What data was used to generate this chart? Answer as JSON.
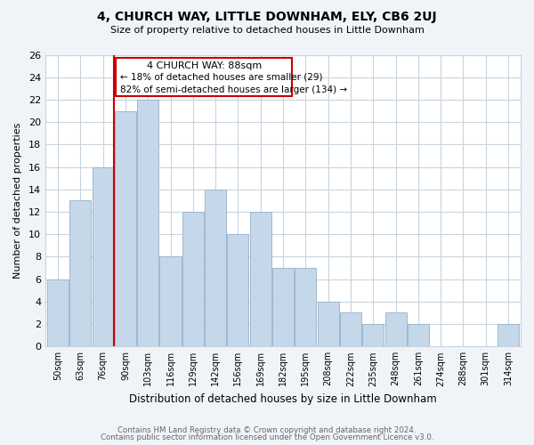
{
  "title": "4, CHURCH WAY, LITTLE DOWNHAM, ELY, CB6 2UJ",
  "subtitle": "Size of property relative to detached houses in Little Downham",
  "xlabel": "Distribution of detached houses by size in Little Downham",
  "ylabel": "Number of detached properties",
  "bar_labels": [
    "50sqm",
    "63sqm",
    "76sqm",
    "90sqm",
    "103sqm",
    "116sqm",
    "129sqm",
    "142sqm",
    "156sqm",
    "169sqm",
    "182sqm",
    "195sqm",
    "208sqm",
    "222sqm",
    "235sqm",
    "248sqm",
    "261sqm",
    "274sqm",
    "288sqm",
    "301sqm",
    "314sqm"
  ],
  "bar_values": [
    6,
    13,
    16,
    21,
    22,
    8,
    12,
    14,
    10,
    12,
    7,
    7,
    4,
    3,
    2,
    3,
    2,
    0,
    0,
    0,
    2
  ],
  "bar_color": "#c5d8ea",
  "bar_edgecolor": "#9db8cf",
  "marker_label": "4 CHURCH WAY: 88sqm",
  "marker_color": "#cc0000",
  "annotation_line1": "← 18% of detached houses are smaller (29)",
  "annotation_line2": "82% of semi-detached houses are larger (134) →",
  "ylim": [
    0,
    26
  ],
  "yticks": [
    0,
    2,
    4,
    6,
    8,
    10,
    12,
    14,
    16,
    18,
    20,
    22,
    24,
    26
  ],
  "footer_line1": "Contains HM Land Registry data © Crown copyright and database right 2024.",
  "footer_line2": "Contains public sector information licensed under the Open Government Licence v3.0.",
  "bg_color": "#f0f4f8",
  "plot_bg_color": "#ffffff",
  "grid_color": "#c8d4de"
}
